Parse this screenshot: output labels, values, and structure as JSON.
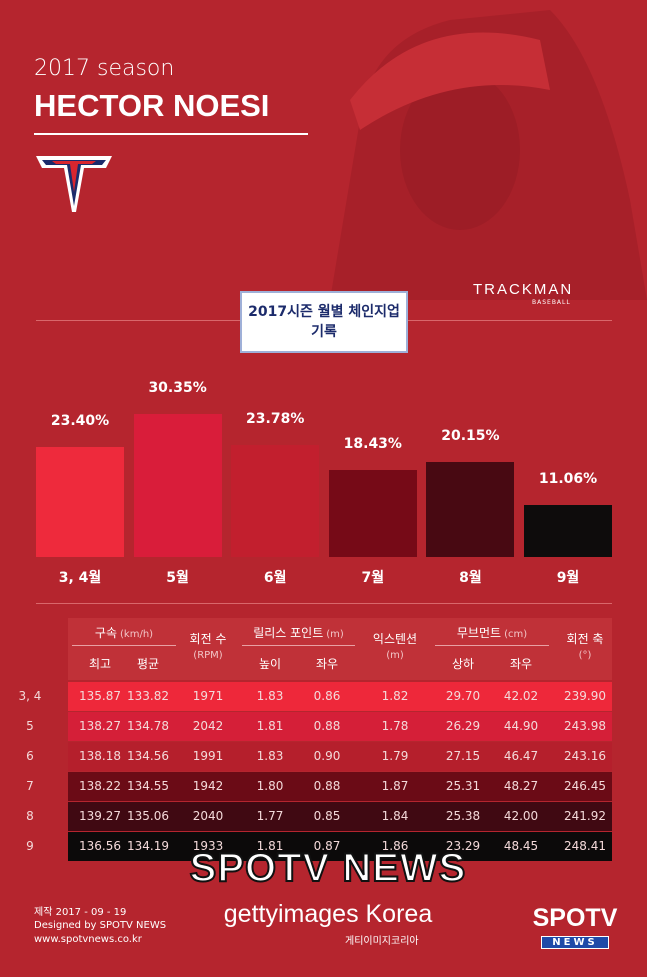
{
  "header": {
    "season": "2017 season",
    "player": "HECTOR NOESI",
    "brand": "TRACKMAN",
    "brand_sub": "BASEBALL"
  },
  "chart_data": {
    "type": "bar",
    "title": "2017시즌 월별 체인지업 기록",
    "categories": [
      "3, 4월",
      "5월",
      "6월",
      "7월",
      "8월",
      "9월"
    ],
    "values": [
      23.4,
      30.35,
      23.78,
      18.43,
      20.15,
      11.06
    ],
    "value_labels": [
      "23.40%",
      "30.35%",
      "23.78%",
      "18.43%",
      "20.15%",
      "11.06%"
    ],
    "colors": [
      "#ee2a3c",
      "#d91d3a",
      "#c21f2e",
      "#760a17",
      "#480912",
      "#0e0c0c"
    ]
  },
  "table": {
    "columns": [
      {
        "label": "구속",
        "unit": "(km/h)",
        "sub": [
          "최고",
          "평균"
        ]
      },
      {
        "label": "회전 수",
        "unit": "(RPM)"
      },
      {
        "label": "릴리스 포인트",
        "unit": "(m)",
        "sub": [
          "높이",
          "좌우"
        ]
      },
      {
        "label": "익스텐션",
        "unit": "(m)"
      },
      {
        "label": "무브먼트",
        "unit": "(cm)",
        "sub": [
          "상하",
          "좌우"
        ]
      },
      {
        "label": "회전 축",
        "unit": "(°)"
      }
    ],
    "rows": [
      [
        "3, 4",
        "135.87",
        "133.82",
        "1971",
        "1.83",
        "0.86",
        "1.82",
        "29.70",
        "42.02",
        "239.90"
      ],
      [
        "5",
        "138.27",
        "134.78",
        "2042",
        "1.81",
        "0.88",
        "1.78",
        "26.29",
        "44.90",
        "243.98"
      ],
      [
        "6",
        "138.18",
        "134.56",
        "1991",
        "1.83",
        "0.90",
        "1.79",
        "27.15",
        "46.47",
        "243.16"
      ],
      [
        "7",
        "138.22",
        "134.55",
        "1942",
        "1.80",
        "0.88",
        "1.87",
        "25.31",
        "48.27",
        "246.45"
      ],
      [
        "8",
        "139.27",
        "135.06",
        "2040",
        "1.77",
        "0.85",
        "1.84",
        "25.38",
        "42.00",
        "241.92"
      ],
      [
        "9",
        "136.56",
        "134.19",
        "1933",
        "1.81",
        "0.87",
        "1.86",
        "23.29",
        "48.45",
        "248.41"
      ]
    ],
    "row_colors": [
      "#ee283a",
      "#d51f38",
      "#b51f2c",
      "#6b0b16",
      "#400912",
      "#0c0a0a"
    ]
  },
  "footer": {
    "date": "제작 2017 - 09 - 19",
    "credit": "Designed by SPOTV NEWS",
    "url": "www.spotvnews.co.kr",
    "watermark": "SPOTV NEWS",
    "getty": "gettyimages Korea",
    "getty_kr": "게티이미지코리아",
    "logo_top": "SPOTV",
    "logo_bottom": "NEWS"
  }
}
